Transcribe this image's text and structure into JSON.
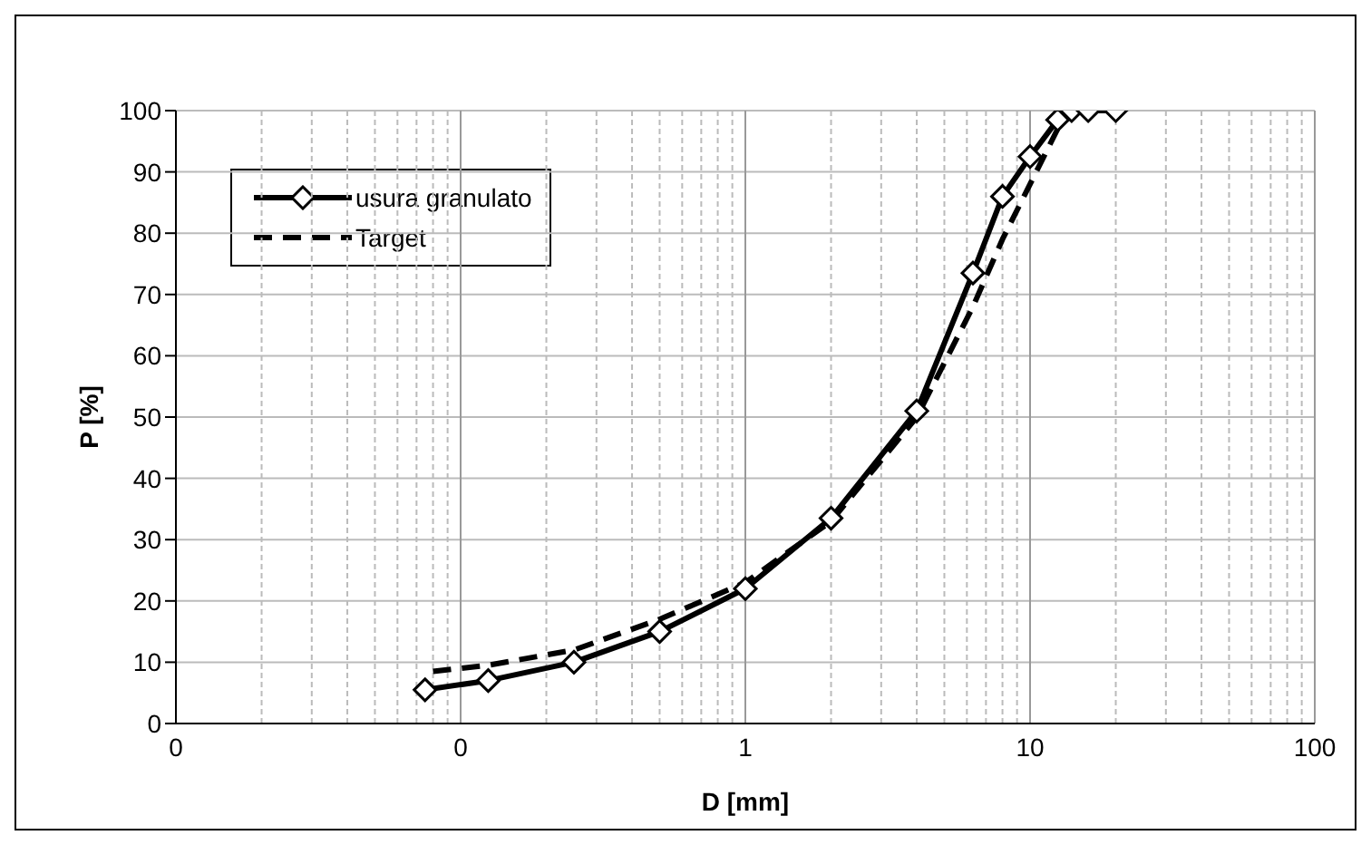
{
  "chart_data": {
    "type": "line",
    "xlabel": "D [mm]",
    "ylabel": "P [%]",
    "log": "x",
    "grid": true,
    "legend": "top left",
    "xlim": [
      0.01,
      100
    ],
    "xticks": [
      {
        "value": 0.01,
        "label": "0"
      },
      {
        "value": 0.1,
        "label": "0"
      },
      1,
      10,
      100
    ],
    "ylim": [
      0,
      100
    ],
    "yticks": [
      0,
      10,
      20,
      30,
      40,
      50,
      60,
      70,
      80,
      90,
      100
    ],
    "series": [
      {
        "name": "usura granulato",
        "color": "#000000",
        "marker": "diamond",
        "line_style": "solid",
        "x": [
          0.075,
          0.125,
          0.25,
          0.5,
          1,
          2,
          4,
          6.3,
          8,
          10,
          12.5,
          14,
          16,
          20
        ],
        "values": [
          5.5,
          7,
          10,
          15,
          22,
          33.5,
          51,
          73.5,
          86,
          92.5,
          98.5,
          100,
          100,
          100
        ]
      },
      {
        "name": "Target",
        "color": "#000000",
        "marker": "none",
        "line_style": "dashed",
        "x": [
          0.08,
          0.125,
          0.25,
          0.5,
          1,
          2,
          4,
          6.3,
          8,
          10,
          12.5
        ],
        "values": [
          8.5,
          9.5,
          12,
          17,
          23,
          33,
          50,
          68,
          79,
          88,
          97
        ]
      }
    ]
  }
}
